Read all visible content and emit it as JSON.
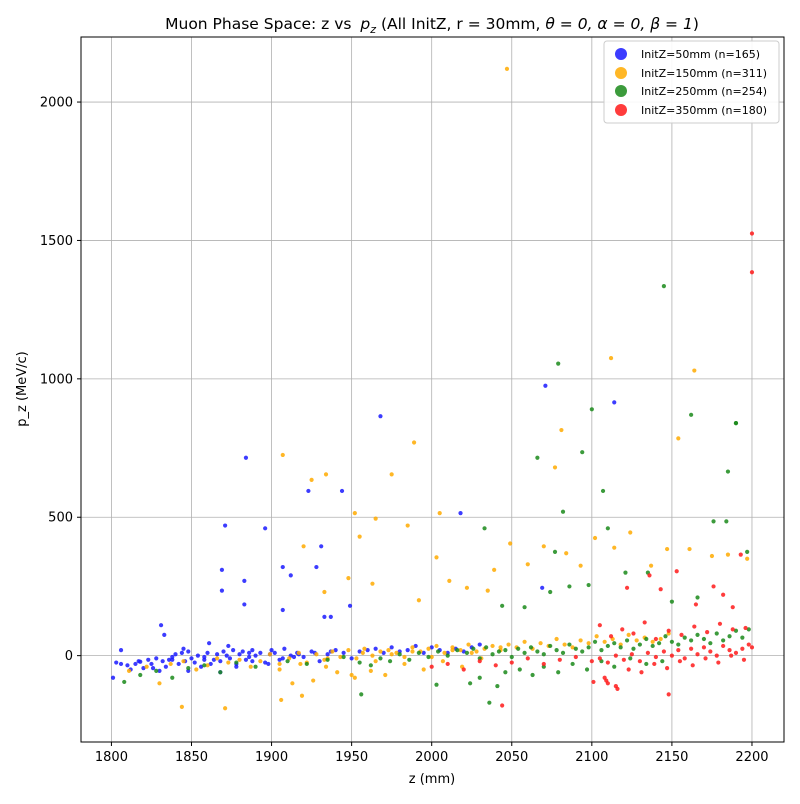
{
  "chart_data": {
    "type": "scatter",
    "title": "Muon Phase Space: z vs",
    "title_pz": "p",
    "title_pz_sub": "z",
    "title_rest": " (All InitZ, r = 30mm, ",
    "title_params": "θ = 0, α = 0, β = 1",
    "title_close": ")",
    "xlabel": "z (mm)",
    "ylabel": "p_z (MeV/c)",
    "xlim": [
      1781,
      2220
    ],
    "ylim": [
      -312,
      2235
    ],
    "xticks": [
      1800,
      1850,
      1900,
      1950,
      2000,
      2050,
      2100,
      2150,
      2200
    ],
    "yticks": [
      0,
      500,
      1000,
      1500,
      2000
    ],
    "grid": true,
    "legend_position": "upper right",
    "series": [
      {
        "name": "InitZ=50mm (n=165)",
        "color": "#1a1aff",
        "x": [
          1801,
          1803,
          1806,
          1810,
          1812,
          1815,
          1818,
          1820,
          1823,
          1825,
          1828,
          1830,
          1832,
          1834,
          1836,
          1838,
          1840,
          1842,
          1844,
          1846,
          1848,
          1850,
          1852,
          1854,
          1856,
          1858,
          1860,
          1862,
          1864,
          1866,
          1868,
          1870,
          1872,
          1874,
          1876,
          1878,
          1880,
          1882,
          1884,
          1886,
          1888,
          1890,
          1893,
          1896,
          1899,
          1902,
          1905,
          1908,
          1912,
          1916,
          1920,
          1925,
          1930,
          1935,
          1940,
          1945,
          1950,
          1955,
          1960,
          1965,
          1970,
          1975,
          1980,
          1985,
          1990,
          1995,
          2000,
          2005,
          2010,
          2015,
          2020,
          2025,
          2030,
          1806,
          1817,
          1826,
          1838,
          1848,
          1858,
          1868,
          1878,
          1888,
          1898,
          1907,
          1917,
          1927,
          1937,
          1833,
          1845,
          1861,
          1873,
          1886,
          1900,
          1914,
          1831,
          1869,
          1883,
          1896,
          1907,
          1912,
          1923,
          1928,
          1931,
          1944,
          1949,
          1968,
          1869,
          1871,
          1883,
          1884,
          1907,
          1933,
          1937,
          2018,
          2071,
          2069,
          2114
        ],
        "y": [
          -80,
          -25,
          20,
          -35,
          -50,
          -30,
          -22,
          -45,
          -15,
          -30,
          -10,
          -55,
          -20,
          -40,
          -15,
          -5,
          5,
          -30,
          10,
          -20,
          15,
          -10,
          -25,
          0,
          -40,
          -5,
          10,
          -30,
          -15,
          5,
          -20,
          15,
          0,
          -10,
          20,
          -30,
          5,
          15,
          -15,
          -5,
          20,
          0,
          10,
          -25,
          5,
          10,
          -15,
          25,
          0,
          10,
          -5,
          15,
          -20,
          5,
          20,
          10,
          -10,
          15,
          20,
          25,
          10,
          30,
          15,
          20,
          35,
          10,
          30,
          20,
          10,
          25,
          15,
          30,
          40,
          -30,
          -20,
          -45,
          -15,
          -55,
          -15,
          -60,
          -40,
          -20,
          -30,
          -10,
          5,
          10,
          15,
          75,
          25,
          45,
          35,
          10,
          20,
          -5,
          110,
          310,
          270,
          460,
          320,
          290,
          595,
          320,
          395,
          595,
          180,
          865,
          235,
          470,
          185,
          715,
          165,
          140,
          140,
          515,
          975,
          245,
          915
        ]
      },
      {
        "name": "InitZ=150mm (n=311)",
        "color": "#ffaa00",
        "x": [
          1811,
          1822,
          1830,
          1837,
          1845,
          1853,
          1860,
          1866,
          1873,
          1880,
          1887,
          1893,
          1899,
          1905,
          1911,
          1917,
          1922,
          1928,
          1933,
          1938,
          1943,
          1948,
          1953,
          1958,
          1963,
          1968,
          1973,
          1978,
          1983,
          1988,
          1993,
          1998,
          2003,
          2008,
          2013,
          2018,
          2023,
          2028,
          2033,
          2038,
          2043,
          2048,
          2053,
          2058,
          2063,
          2068,
          2073,
          2078,
          2083,
          2088,
          2093,
          2098,
          2103,
          2108,
          2113,
          2118,
          2123,
          2128,
          2133,
          2138,
          2143,
          2148,
          1906,
          1913,
          1919,
          1926,
          1934,
          1941,
          1952,
          1962,
          1971,
          1983,
          1995,
          2007,
          2019,
          2031,
          1844,
          1871,
          1905,
          1918,
          1935,
          1950,
          1957,
          1965,
          1975,
          1988,
          2000,
          2013,
          2025,
          2043,
          1907,
          1925,
          1934,
          1952,
          1965,
          1975,
          1989,
          2005,
          2047,
          2081,
          2077,
          2112,
          2154,
          2164,
          1920,
          1933,
          1948,
          1955,
          1963,
          1985,
          1992,
          2003,
          2011,
          2022,
          2035,
          2039,
          2049,
          2060,
          2070,
          2084,
          2093,
          2102,
          2114,
          2124,
          2137,
          2147,
          2161,
          2175,
          2185,
          2197
        ],
        "y": [
          -55,
          -40,
          -100,
          -30,
          -20,
          -50,
          -35,
          -10,
          -25,
          -15,
          -40,
          -20,
          5,
          -30,
          -10,
          10,
          -25,
          5,
          -15,
          15,
          -5,
          20,
          -10,
          25,
          0,
          15,
          20,
          10,
          -5,
          30,
          15,
          25,
          35,
          10,
          30,
          20,
          40,
          15,
          25,
          35,
          20,
          40,
          30,
          50,
          25,
          45,
          35,
          60,
          40,
          30,
          55,
          45,
          70,
          50,
          60,
          40,
          75,
          55,
          65,
          50,
          60,
          80,
          -160,
          -100,
          -145,
          -90,
          -40,
          -60,
          -80,
          -55,
          -70,
          -30,
          -50,
          -20,
          -40,
          -10,
          -185,
          -190,
          -50,
          -30,
          -10,
          -70,
          10,
          -20,
          5,
          15,
          -5,
          20,
          10,
          30,
          725,
          635,
          655,
          515,
          495,
          655,
          770,
          515,
          2120,
          815,
          680,
          1075,
          785,
          1030,
          395,
          230,
          280,
          430,
          260,
          470,
          200,
          355,
          270,
          245,
          235,
          310,
          405,
          330,
          395,
          370,
          325,
          425,
          390,
          445,
          325,
          385,
          385,
          360,
          365,
          350
        ]
      },
      {
        "name": "InitZ=250mm (n=254)",
        "color": "#1a8a1a",
        "x": [
          1808,
          1818,
          1828,
          1838,
          1848,
          1858,
          1868,
          1878,
          1890,
          1910,
          1922,
          1935,
          1945,
          1955,
          1962,
          1968,
          1974,
          1980,
          1986,
          1992,
          1998,
          2004,
          2010,
          2016,
          2022,
          2026,
          2030,
          2034,
          2038,
          2042,
          2046,
          2050,
          2054,
          2058,
          2062,
          2066,
          2070,
          2074,
          2078,
          2082,
          2086,
          2090,
          2094,
          2098,
          2102,
          2106,
          2110,
          2114,
          2118,
          2122,
          2126,
          2130,
          2134,
          2138,
          2142,
          2146,
          2150,
          2154,
          2158,
          2162,
          2166,
          2170,
          2174,
          2178,
          2182,
          2186,
          2190,
          2194,
          2198,
          2024,
          2030,
          2036,
          2041,
          2046,
          2055,
          2063,
          2070,
          2079,
          2088,
          2097,
          2106,
          2114,
          2124,
          2134,
          2144,
          1956,
          2003,
          2033,
          2044,
          2058,
          2074,
          2086,
          2098,
          2110,
          2121,
          2135,
          2150,
          2166,
          2184,
          2190,
          2094,
          2100,
          2077,
          2082,
          2066,
          2079,
          2107,
          2145,
          2162,
          2176,
          2185,
          2190,
          2197
        ],
        "y": [
          -95,
          -70,
          -55,
          -80,
          -45,
          -35,
          -60,
          -25,
          -40,
          -20,
          -30,
          -15,
          -5,
          -25,
          -35,
          -10,
          -20,
          5,
          -15,
          10,
          -5,
          15,
          0,
          20,
          10,
          25,
          -10,
          30,
          5,
          15,
          20,
          -5,
          25,
          10,
          30,
          15,
          5,
          35,
          20,
          10,
          40,
          25,
          15,
          30,
          50,
          20,
          35,
          45,
          30,
          55,
          25,
          40,
          60,
          35,
          45,
          70,
          50,
          40,
          65,
          55,
          75,
          60,
          45,
          80,
          55,
          70,
          90,
          65,
          95,
          -100,
          -80,
          -170,
          -110,
          -60,
          -50,
          -70,
          -40,
          -60,
          -30,
          -50,
          -20,
          -40,
          -10,
          -30,
          -20,
          -140,
          -105,
          460,
          180,
          175,
          230,
          250,
          255,
          460,
          300,
          300,
          195,
          210,
          485,
          840,
          735,
          890,
          375,
          520,
          715,
          1055,
          595,
          1335,
          870,
          485,
          665,
          840,
          375
        ]
      },
      {
        "name": "InitZ=350mm (n=180)",
        "color": "#ff1a1a",
        "x": [
          2000,
          2010,
          2020,
          2030,
          2040,
          2050,
          2060,
          2070,
          2080,
          2090,
          2100,
          2105,
          2110,
          2115,
          2120,
          2125,
          2130,
          2135,
          2140,
          2145,
          2150,
          2154,
          2158,
          2162,
          2166,
          2170,
          2174,
          2178,
          2182,
          2186,
          2190,
          2194,
          2198,
          2200,
          2101,
          2108,
          2115,
          2123,
          2131,
          2139,
          2147,
          2155,
          2163,
          2171,
          2179,
          2187,
          2195,
          2105,
          2112,
          2119,
          2126,
          2133,
          2140,
          2148,
          2156,
          2164,
          2172,
          2180,
          2188,
          2196,
          2044,
          2109,
          2116,
          2110,
          2148,
          2122,
          2136,
          2143,
          2153,
          2165,
          2176,
          2182,
          2188,
          2193,
          2200,
          2200
        ],
        "y": [
          -40,
          -30,
          -50,
          -20,
          -35,
          -25,
          -10,
          -30,
          -15,
          -5,
          -20,
          -10,
          -25,
          0,
          -15,
          5,
          -20,
          10,
          -5,
          15,
          0,
          20,
          -10,
          25,
          5,
          30,
          15,
          0,
          35,
          20,
          10,
          25,
          40,
          30,
          -95,
          -80,
          -110,
          -50,
          -60,
          -30,
          -45,
          -20,
          -35,
          -10,
          -25,
          0,
          -15,
          110,
          70,
          95,
          80,
          120,
          60,
          90,
          75,
          105,
          85,
          115,
          95,
          100,
          -180,
          -90,
          -120,
          -100,
          -140,
          245,
          290,
          240,
          305,
          185,
          250,
          220,
          175,
          365,
          1525,
          1385
        ]
      }
    ]
  }
}
